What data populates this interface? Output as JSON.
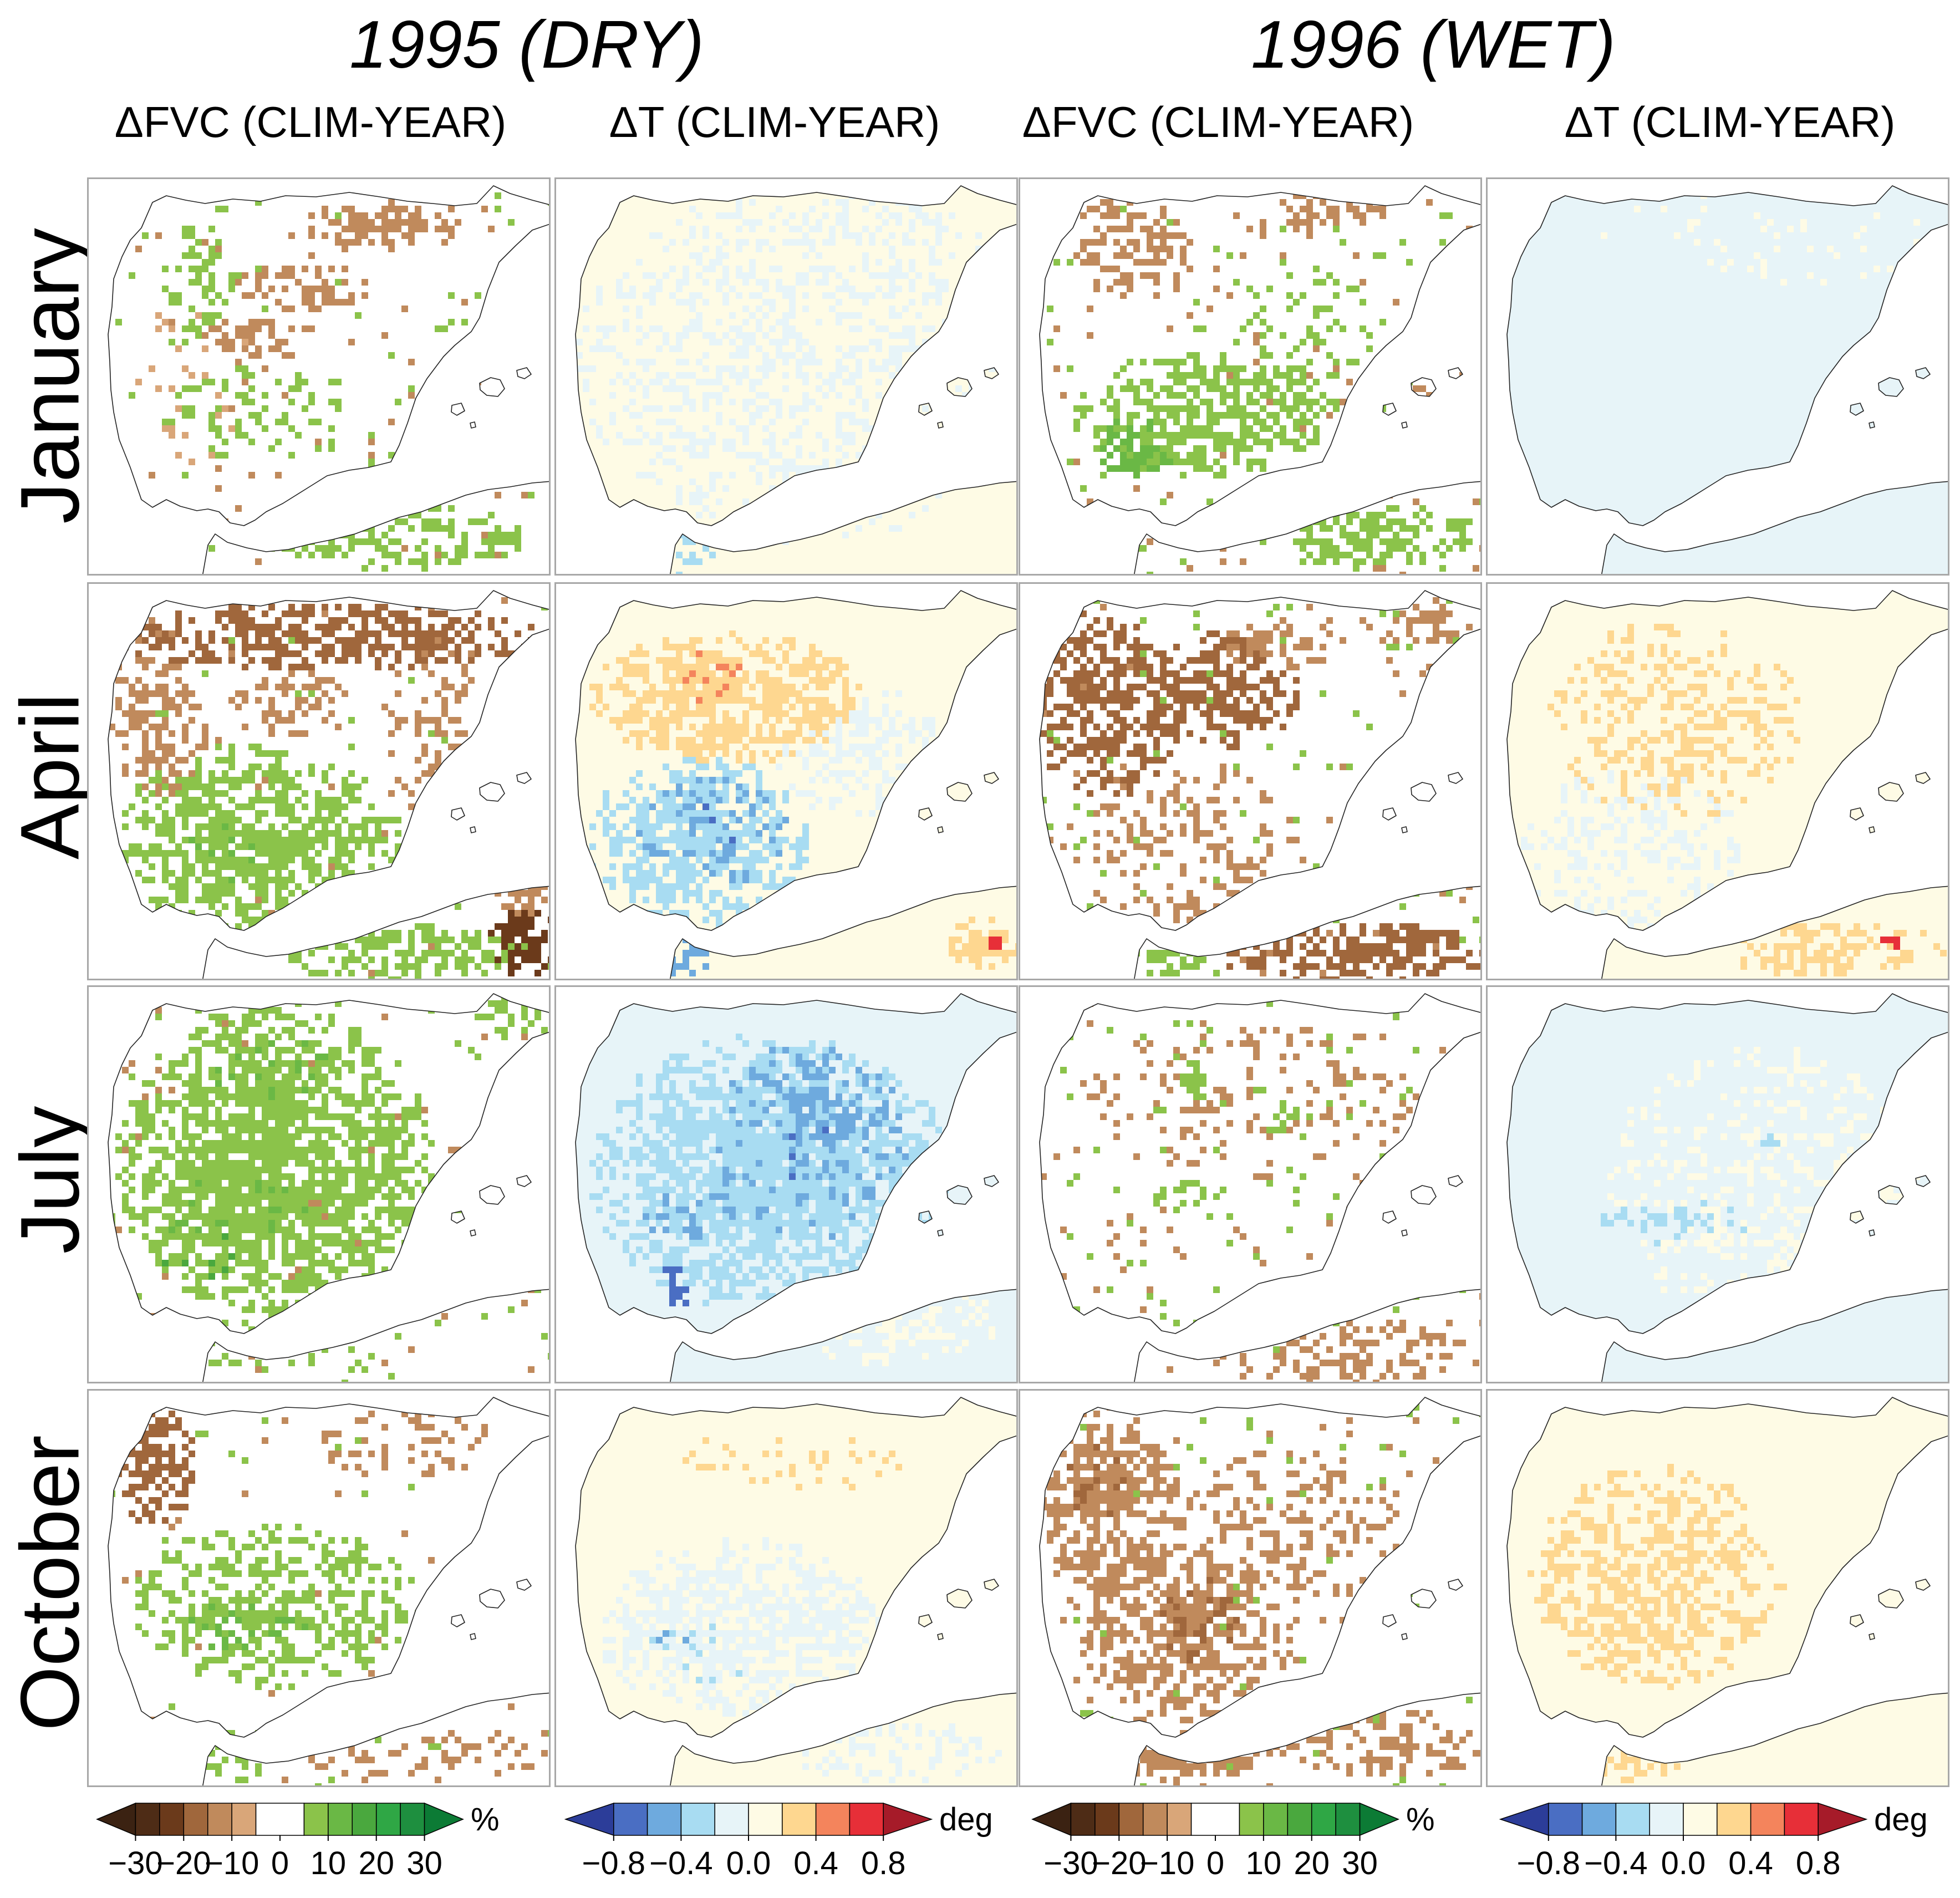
{
  "chart_data": {
    "type": "heatmap",
    "groups": [
      {
        "title": "1995 (DRY)"
      },
      {
        "title": "1996 (WET)"
      }
    ],
    "column_titles": [
      "ΔFVC  (CLIM-YEAR)",
      "ΔT  (CLIM-YEAR)",
      "ΔFVC  (CLIM-YEAR)",
      "ΔT  (CLIM-YEAR)"
    ],
    "row_labels": [
      "January",
      "April",
      "July",
      "October"
    ],
    "colorbars": [
      {
        "variable": "ΔFVC",
        "unit": "%",
        "boundaries": [
          -35,
          -30,
          -25,
          -20,
          -15,
          -10,
          -5,
          5,
          10,
          15,
          20,
          25,
          30,
          35
        ],
        "colors": [
          "#3b2212",
          "#4e2c16",
          "#6b3a1b",
          "#a0673c",
          "#c08a5c",
          "#d9a679",
          "#ffffff",
          "#8bc34a",
          "#6ab845",
          "#4aa83e",
          "#2fa745",
          "#1e8f3f",
          "#0c7b35"
        ],
        "ticks": [
          "−30",
          "−20",
          "−10",
          "0",
          "10",
          "20",
          "30"
        ],
        "tick_values": [
          -30,
          -20,
          -10,
          0,
          10,
          20,
          30
        ]
      },
      {
        "variable": "ΔT",
        "unit": "deg",
        "boundaries": [
          -1.0,
          -0.8,
          -0.6,
          -0.4,
          -0.2,
          0.0,
          0.2,
          0.4,
          0.6,
          0.8,
          1.0
        ],
        "colors": [
          "#2c3d99",
          "#4a6ec3",
          "#6eaade",
          "#a8dcf2",
          "#e7f4f8",
          "#fefbe5",
          "#fed790",
          "#f4845c",
          "#e72f38",
          "#a61b29"
        ],
        "ticks": [
          "−0.8",
          "−0.4",
          "0.0",
          "0.4",
          "0.8"
        ],
        "tick_values": [
          -0.8,
          -0.4,
          0.0,
          0.4,
          0.8
        ]
      }
    ],
    "panels": [
      {
        "row": "January",
        "group": "1995 (DRY)",
        "variable": "ΔFVC",
        "pattern": "mixed: scattered green (+) in west/south, brown (−10 to −20) bands in north-centre"
      },
      {
        "row": "January",
        "group": "1995 (DRY)",
        "variable": "ΔT",
        "pattern": "near zero: mostly −0.2 to 0.2"
      },
      {
        "row": "January",
        "group": "1996 (WET)",
        "variable": "ΔFVC",
        "pattern": "positive +10 to +20 across south; brown patches in north"
      },
      {
        "row": "January",
        "group": "1996 (WET)",
        "variable": "ΔT",
        "pattern": "near zero, slightly negative"
      },
      {
        "row": "April",
        "group": "1995 (DRY)",
        "variable": "ΔFVC",
        "pattern": "strong negative (−20 to −30) in north; positive (+10 to +20) in south-west"
      },
      {
        "row": "April",
        "group": "1995 (DRY)",
        "variable": "ΔT",
        "pattern": "positive (0.2 to 0.6) in north; negative (−0.4 to −0.8) in south-west"
      },
      {
        "row": "April",
        "group": "1996 (WET)",
        "variable": "ΔFVC",
        "pattern": "negative (−10 to −30) in north-west and centre"
      },
      {
        "row": "April",
        "group": "1996 (WET)",
        "variable": "ΔT",
        "pattern": "slightly positive (0.2 to 0.4) in north-centre"
      },
      {
        "row": "July",
        "group": "1995 (DRY)",
        "variable": "ΔFVC",
        "pattern": "widespread positive (+10 to +30)"
      },
      {
        "row": "July",
        "group": "1995 (DRY)",
        "variable": "ΔT",
        "pattern": "widespread negative (−0.2 to −0.8) in centre and south"
      },
      {
        "row": "July",
        "group": "1996 (WET)",
        "variable": "ΔFVC",
        "pattern": "scattered small negative and positive patches"
      },
      {
        "row": "July",
        "group": "1996 (WET)",
        "variable": "ΔT",
        "pattern": "near zero with isolated small anomalies"
      },
      {
        "row": "October",
        "group": "1995 (DRY)",
        "variable": "ΔFVC",
        "pattern": "positive (+10) in south; negative in north-west"
      },
      {
        "row": "October",
        "group": "1995 (DRY)",
        "variable": "ΔT",
        "pattern": "slightly negative (−0.2 to −0.4) in south-centre"
      },
      {
        "row": "October",
        "group": "1996 (WET)",
        "variable": "ΔFVC",
        "pattern": "widespread negative (−10 to −20) in west and centre"
      },
      {
        "row": "October",
        "group": "1996 (WET)",
        "variable": "ΔT",
        "pattern": "slightly positive (0.2 to 0.4) in centre"
      }
    ]
  }
}
